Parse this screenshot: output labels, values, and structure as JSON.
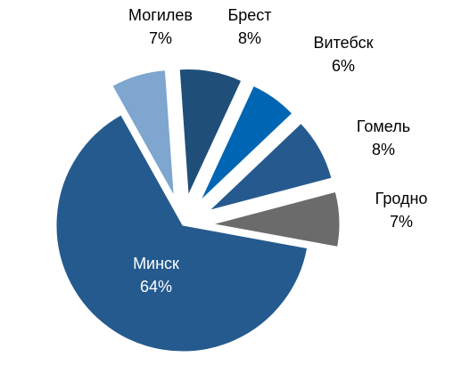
{
  "chart_data": {
    "type": "pie",
    "title": "",
    "legend": "none",
    "unit": "%",
    "slices": [
      {
        "name": "Брест",
        "value": 8,
        "label": "8%",
        "color": "#1f4e79",
        "exploded": true
      },
      {
        "name": "Витебск",
        "value": 6,
        "label": "6%",
        "color": "#0066b3",
        "exploded": true
      },
      {
        "name": "Гомель",
        "value": 8,
        "label": "8%",
        "color": "#265a8f",
        "exploded": true
      },
      {
        "name": "Гродно",
        "value": 7,
        "label": "7%",
        "color": "#6b6b6b",
        "exploded": true
      },
      {
        "name": "Минск",
        "value": 64,
        "label": "64%",
        "color": "#255a8e",
        "exploded": false
      },
      {
        "name": "Могилев",
        "value": 7,
        "label": "7%",
        "color": "#7ea6cf",
        "exploded": true
      }
    ]
  }
}
